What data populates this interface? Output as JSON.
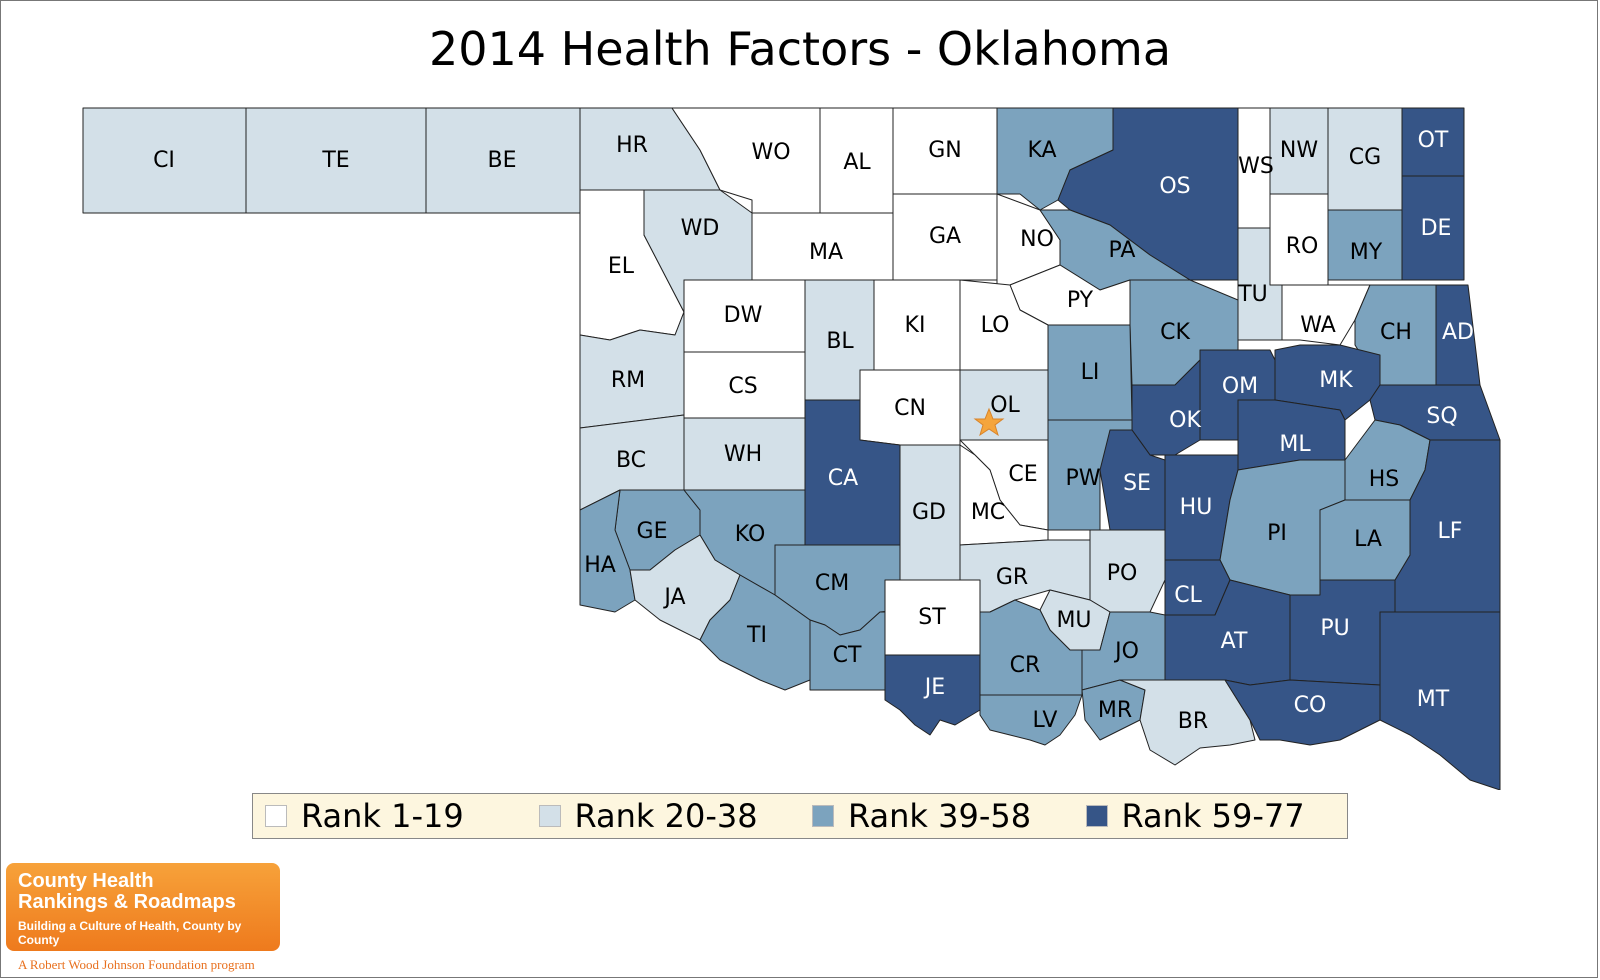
{
  "title": "2014 Health Factors - Oklahoma",
  "colors": {
    "rank_1_19": "#ffffff",
    "rank_20_38": "#d3e0e8",
    "rank_39_58": "#7ca3be",
    "rank_59_77": "#365587",
    "border": "#222222",
    "star": "#f5a53c"
  },
  "legend": [
    {
      "label": "Rank 1-19",
      "class": "rank_1_19"
    },
    {
      "label": "Rank 20-38",
      "class": "rank_20_38"
    },
    {
      "label": "Rank 39-58",
      "class": "rank_39_58"
    },
    {
      "label": "Rank 59-77",
      "class": "rank_59_77"
    }
  ],
  "counties": [
    {
      "abbr": "CI",
      "rank_class": "rank_20_38"
    },
    {
      "abbr": "TE",
      "rank_class": "rank_20_38"
    },
    {
      "abbr": "BE",
      "rank_class": "rank_20_38"
    },
    {
      "abbr": "HR",
      "rank_class": "rank_20_38"
    },
    {
      "abbr": "WO",
      "rank_class": "rank_1_19"
    },
    {
      "abbr": "AL",
      "rank_class": "rank_1_19"
    },
    {
      "abbr": "GN",
      "rank_class": "rank_1_19"
    },
    {
      "abbr": "KA",
      "rank_class": "rank_39_58"
    },
    {
      "abbr": "OS",
      "rank_class": "rank_59_77"
    },
    {
      "abbr": "WS",
      "rank_class": "rank_1_19"
    },
    {
      "abbr": "NW",
      "rank_class": "rank_20_38"
    },
    {
      "abbr": "CG",
      "rank_class": "rank_20_38"
    },
    {
      "abbr": "OT",
      "rank_class": "rank_59_77"
    },
    {
      "abbr": "EL",
      "rank_class": "rank_1_19"
    },
    {
      "abbr": "WD",
      "rank_class": "rank_20_38"
    },
    {
      "abbr": "MA",
      "rank_class": "rank_1_19"
    },
    {
      "abbr": "GA",
      "rank_class": "rank_1_19"
    },
    {
      "abbr": "NO",
      "rank_class": "rank_1_19"
    },
    {
      "abbr": "PA",
      "rank_class": "rank_39_58"
    },
    {
      "abbr": "RO",
      "rank_class": "rank_1_19"
    },
    {
      "abbr": "MY",
      "rank_class": "rank_39_58"
    },
    {
      "abbr": "DE",
      "rank_class": "rank_59_77"
    },
    {
      "abbr": "DW",
      "rank_class": "rank_1_19"
    },
    {
      "abbr": "PY",
      "rank_class": "rank_1_19"
    },
    {
      "abbr": "TU",
      "rank_class": "rank_20_38"
    },
    {
      "abbr": "RM",
      "rank_class": "rank_20_38"
    },
    {
      "abbr": "BL",
      "rank_class": "rank_20_38"
    },
    {
      "abbr": "KI",
      "rank_class": "rank_1_19"
    },
    {
      "abbr": "LO",
      "rank_class": "rank_1_19"
    },
    {
      "abbr": "CK",
      "rank_class": "rank_39_58"
    },
    {
      "abbr": "WA",
      "rank_class": "rank_1_19"
    },
    {
      "abbr": "CH",
      "rank_class": "rank_39_58"
    },
    {
      "abbr": "AD",
      "rank_class": "rank_59_77"
    },
    {
      "abbr": "CS",
      "rank_class": "rank_1_19"
    },
    {
      "abbr": "LI",
      "rank_class": "rank_39_58"
    },
    {
      "abbr": "OM",
      "rank_class": "rank_59_77"
    },
    {
      "abbr": "MK",
      "rank_class": "rank_59_77"
    },
    {
      "abbr": "BC",
      "rank_class": "rank_20_38"
    },
    {
      "abbr": "WH",
      "rank_class": "rank_20_38"
    },
    {
      "abbr": "CN",
      "rank_class": "rank_1_19"
    },
    {
      "abbr": "OL",
      "rank_class": "rank_20_38"
    },
    {
      "abbr": "OK",
      "rank_class": "rank_59_77"
    },
    {
      "abbr": "SQ",
      "rank_class": "rank_59_77"
    },
    {
      "abbr": "ML",
      "rank_class": "rank_59_77"
    },
    {
      "abbr": "CA",
      "rank_class": "rank_59_77"
    },
    {
      "abbr": "CE",
      "rank_class": "rank_1_19"
    },
    {
      "abbr": "PW",
      "rank_class": "rank_39_58"
    },
    {
      "abbr": "SE",
      "rank_class": "rank_59_77"
    },
    {
      "abbr": "HS",
      "rank_class": "rank_39_58"
    },
    {
      "abbr": "GE",
      "rank_class": "rank_39_58"
    },
    {
      "abbr": "KO",
      "rank_class": "rank_39_58"
    },
    {
      "abbr": "GD",
      "rank_class": "rank_20_38"
    },
    {
      "abbr": "MC",
      "rank_class": "rank_1_19"
    },
    {
      "abbr": "HU",
      "rank_class": "rank_59_77"
    },
    {
      "abbr": "PI",
      "rank_class": "rank_39_58"
    },
    {
      "abbr": "LF",
      "rank_class": "rank_59_77"
    },
    {
      "abbr": "LA",
      "rank_class": "rank_39_58"
    },
    {
      "abbr": "HA",
      "rank_class": "rank_39_58"
    },
    {
      "abbr": "JA",
      "rank_class": "rank_20_38"
    },
    {
      "abbr": "CM",
      "rank_class": "rank_39_58"
    },
    {
      "abbr": "GR",
      "rank_class": "rank_20_38"
    },
    {
      "abbr": "PO",
      "rank_class": "rank_20_38"
    },
    {
      "abbr": "CL",
      "rank_class": "rank_59_77"
    },
    {
      "abbr": "ST",
      "rank_class": "rank_1_19"
    },
    {
      "abbr": "MU",
      "rank_class": "rank_20_38"
    },
    {
      "abbr": "TI",
      "rank_class": "rank_39_58"
    },
    {
      "abbr": "CT",
      "rank_class": "rank_39_58"
    },
    {
      "abbr": "AT",
      "rank_class": "rank_59_77"
    },
    {
      "abbr": "PU",
      "rank_class": "rank_59_77"
    },
    {
      "abbr": "CR",
      "rank_class": "rank_39_58"
    },
    {
      "abbr": "JO",
      "rank_class": "rank_39_58"
    },
    {
      "abbr": "MT",
      "rank_class": "rank_59_77"
    },
    {
      "abbr": "JE",
      "rank_class": "rank_59_77"
    },
    {
      "abbr": "LV",
      "rank_class": "rank_39_58"
    },
    {
      "abbr": "MR",
      "rank_class": "rank_39_58"
    },
    {
      "abbr": "BR",
      "rank_class": "rank_20_38"
    },
    {
      "abbr": "CO",
      "rank_class": "rank_59_77"
    }
  ],
  "capital_marker_county": "OL",
  "logo": {
    "line1": "County Health",
    "line2": "Rankings & Roadmaps",
    "tagline": "Building a Culture of Health, County by County",
    "program": "A Robert Wood Johnson Foundation program"
  }
}
